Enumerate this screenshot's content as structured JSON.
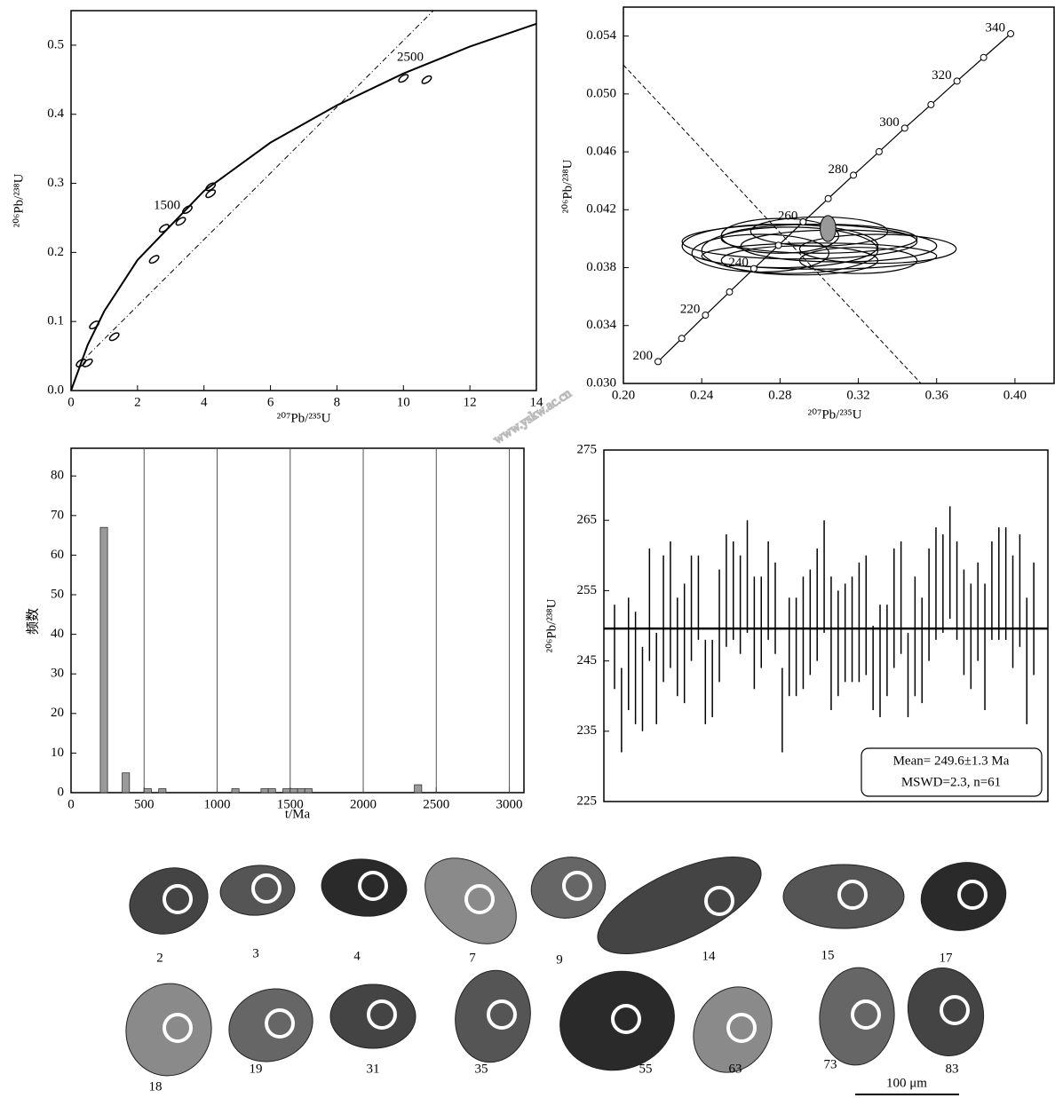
{
  "chart_data": [
    {
      "type": "concordia",
      "xlabel": "²⁰⁷Pb/²³⁵U",
      "ylabel": "²⁰⁶Pb/²³⁸U",
      "xlim": [
        0,
        14
      ],
      "xticks": [
        0,
        2,
        4,
        6,
        8,
        10,
        12,
        14
      ],
      "ylim": [
        0,
        0.55
      ],
      "yticks": [
        {
          "value": 0,
          "label": "0.0"
        },
        0.1,
        0.2,
        0.3,
        0.4,
        0.5
      ],
      "annotations": [
        "1500",
        "2500"
      ],
      "concordia": {
        "x": [
          0,
          0.5,
          1,
          2,
          4,
          6,
          8,
          10,
          12,
          14
        ],
        "values": [
          0,
          0.066,
          0.115,
          0.189,
          0.289,
          0.359,
          0.413,
          0.459,
          0.498,
          0.531
        ]
      },
      "discordia": {
        "x": [
          0.28,
          10.9
        ],
        "values": [
          0.04,
          0.55
        ]
      },
      "ellipses": {
        "x": [
          0.3,
          0.5,
          0.7,
          1.3,
          2.5,
          2.8,
          3.3,
          3.5,
          4.2,
          4.2,
          10.0,
          10.7
        ],
        "values": [
          0.04,
          0.04,
          0.095,
          0.078,
          0.19,
          0.235,
          0.245,
          0.262,
          0.285,
          0.295,
          0.452,
          0.45
        ]
      }
    },
    {
      "type": "concordia",
      "xlabel": "²⁰⁷Pb/²³⁵U",
      "ylabel": "²⁰⁶Pb/²³⁸U",
      "xlim": [
        0.2,
        0.42
      ],
      "xticks": [
        {
          "value": 0.2,
          "label": "0.20"
        },
        {
          "value": 0.24,
          "label": "0.24"
        },
        {
          "value": 0.28,
          "label": "0.28"
        },
        {
          "value": 0.32,
          "label": "0.32"
        },
        {
          "value": 0.36,
          "label": "0.36"
        },
        {
          "value": 0.4,
          "label": "0.40"
        }
      ],
      "ylim": [
        0.03,
        0.056
      ],
      "yticks": [
        {
          "value": 0.03,
          "label": "0.030"
        },
        {
          "value": 0.034,
          "label": "0.034"
        },
        {
          "value": 0.038,
          "label": "0.038"
        },
        {
          "value": 0.042,
          "label": "0.042"
        },
        {
          "value": 0.046,
          "label": "0.046"
        },
        {
          "value": 0.05,
          "label": "0.050"
        },
        {
          "value": 0.054,
          "label": "0.054"
        }
      ],
      "concordia": {
        "x": [
          0.2177,
          0.2298,
          0.2419,
          0.2542,
          0.2666,
          0.2792,
          0.2918,
          0.3046,
          0.3175,
          0.3306,
          0.3437,
          0.3571,
          0.3704,
          0.384,
          0.3978
        ],
        "values": [
          0.03151,
          0.03311,
          0.03472,
          0.03632,
          0.03793,
          0.03954,
          0.04116,
          0.04277,
          0.04439,
          0.04601,
          0.04764,
          0.04926,
          0.05089,
          0.05252,
          0.05416
        ],
        "labels": [
          200,
          null,
          220,
          null,
          240,
          null,
          260,
          null,
          280,
          null,
          300,
          null,
          320,
          null,
          340
        ]
      },
      "discordia": {
        "x": [
          0.2,
          0.352
        ],
        "values": [
          0.052,
          0.03
        ]
      },
      "ellipses": {
        "x": [
          0.28,
          0.29,
          0.3,
          0.31,
          0.27,
          0.33,
          0.29,
          0.3,
          0.28,
          0.32,
          0.285,
          0.3
        ],
        "values": [
          0.0395,
          0.0398,
          0.04,
          0.0395,
          0.039,
          0.0393,
          0.0385,
          0.0405,
          0.0402,
          0.0385,
          0.0392,
          0.0388
        ],
        "x_err": [
          0.05,
          0.06,
          0.05,
          0.05,
          0.035,
          0.04,
          0.04,
          0.035,
          0.03,
          0.03,
          0.045,
          0.06
        ],
        "y_err": [
          0.0015,
          0.0012,
          0.001,
          0.0011,
          0.0013,
          0.001,
          0.001,
          0.001,
          0.0012,
          0.0009,
          0.0016,
          0.0009
        ]
      },
      "mean_ellipse": {
        "x": 0.3045,
        "value": 0.0407,
        "x_err": 0.004,
        "y_err": 0.0009
      }
    },
    {
      "type": "histogram",
      "xlabel": "t/Ma",
      "ylabel": "频数",
      "grid": true,
      "xlim": [
        0,
        3100
      ],
      "xticks": [
        0,
        500,
        1000,
        1500,
        2000,
        2500,
        3000
      ],
      "ylim": [
        0,
        87
      ],
      "yticks": [
        0,
        10,
        20,
        30,
        40,
        50,
        60,
        70,
        80
      ],
      "bins": [
        0,
        50,
        100,
        150,
        200,
        250,
        300,
        350,
        400,
        450,
        500,
        550,
        600,
        650,
        700,
        750,
        800,
        850,
        900,
        950,
        1000,
        1050,
        1100,
        1150,
        1200,
        1250,
        1300,
        1350,
        1400,
        1450,
        1500,
        1550,
        1600,
        1650,
        1700,
        1750,
        1800,
        1850,
        1900,
        1950,
        2000,
        2050,
        2100,
        2150,
        2200,
        2250,
        2300,
        2350,
        2400,
        2450,
        2500,
        2550,
        2600,
        2650,
        2700,
        2750,
        2800,
        2850,
        2900,
        2950,
        3000,
        3050,
        3100
      ],
      "values": [
        0,
        0,
        0,
        0,
        67,
        0,
        0,
        5,
        0,
        0,
        1,
        0,
        1,
        0,
        0,
        0,
        0,
        0,
        0,
        0,
        0,
        0,
        1,
        0,
        0,
        0,
        1,
        1,
        0,
        1,
        1,
        1,
        1,
        0,
        0,
        0,
        0,
        0,
        0,
        0,
        0,
        0,
        0,
        0,
        0,
        0,
        0,
        2,
        0,
        0,
        0,
        0,
        0,
        0,
        0,
        0,
        0,
        0,
        0,
        0,
        0,
        0
      ]
    },
    {
      "type": "errorbar",
      "ylabel": "²⁰⁶Pb/²³⁸U",
      "ylim": [
        225,
        275
      ],
      "yticks": [
        225,
        235,
        245,
        255,
        265,
        275
      ],
      "mean": 249.6,
      "annotations": [
        "Mean= 249.6±1.3 Ma",
        "MSWD=2.3, n=61"
      ],
      "values": [
        247,
        238,
        246,
        244,
        241,
        253,
        242.5,
        251,
        253,
        247,
        247.5,
        252.5,
        254,
        242,
        242.5,
        250,
        255,
        255,
        253,
        257,
        249,
        250.5,
        255,
        252.5,
        238,
        247,
        247,
        249,
        250.5,
        253,
        257,
        247.5,
        247.5,
        249,
        249.5,
        250.5,
        251.5,
        244,
        245,
        246.5,
        252.5,
        254,
        243,
        248.5,
        246.5,
        253,
        256,
        256,
        259,
        255,
        250.5,
        248.5,
        252,
        247,
        255,
        256,
        256,
        252,
        255,
        245,
        251
      ],
      "errors": [
        6,
        6,
        8,
        8,
        6,
        8,
        6.5,
        9,
        9,
        7,
        8.5,
        7.5,
        6,
        6,
        5.5,
        8,
        8,
        7,
        7,
        8,
        8,
        6.5,
        7,
        6.5,
        6,
        7,
        7,
        8,
        7.5,
        8,
        8,
        9.5,
        7.5,
        7,
        7.5,
        8.5,
        8.5,
        6,
        8,
        6.5,
        8.5,
        8,
        6,
        8.5,
        7.5,
        8,
        8,
        7,
        8,
        7,
        7.5,
        7.5,
        7,
        9,
        7,
        8,
        8,
        8,
        8,
        9,
        8
      ]
    }
  ],
  "cl_images": {
    "labels": [
      "2",
      "3",
      "4",
      "7",
      "9",
      "14",
      "15",
      "17",
      "18",
      "19",
      "31",
      "35",
      "55",
      "63",
      "73",
      "83"
    ],
    "scale_bar": "100 μm"
  },
  "watermark": "www.yskw.ac.cn"
}
